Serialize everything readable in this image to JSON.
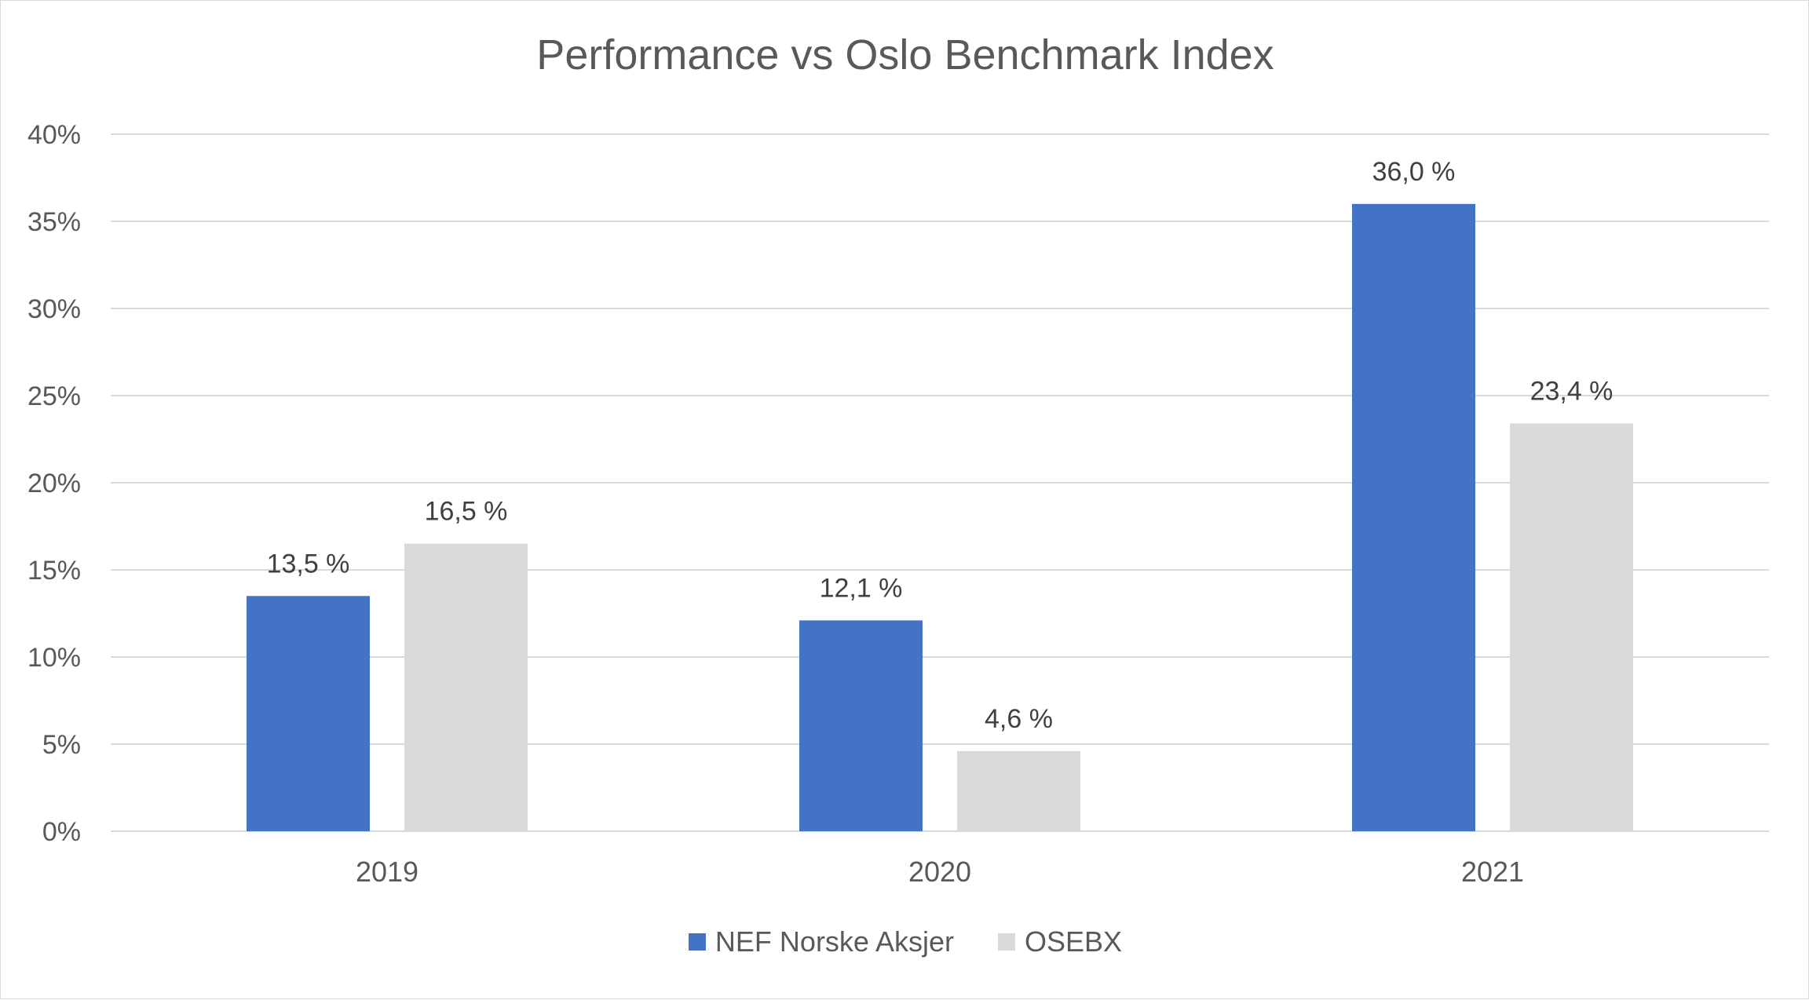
{
  "chart_data": {
    "type": "bar",
    "title": "Performance vs Oslo Benchmark Index",
    "categories": [
      "2019",
      "2020",
      "2021"
    ],
    "series": [
      {
        "name": "NEF Norske Aksjer",
        "color": "#4472c4",
        "values": [
          13.5,
          12.1,
          36.0
        ],
        "labels": [
          "13,5 %",
          "12,1 %",
          "36,0 %"
        ]
      },
      {
        "name": "OSEBX",
        "color": "#d9d9d9",
        "values": [
          16.5,
          4.6,
          23.4
        ],
        "labels": [
          "16,5 %",
          "4,6 %",
          "23,4 %"
        ]
      }
    ],
    "ylim": [
      0,
      40
    ],
    "yticks": [
      0,
      5,
      10,
      15,
      20,
      25,
      30,
      35,
      40
    ],
    "ytick_labels": [
      "0%",
      "5%",
      "10%",
      "15%",
      "20%",
      "25%",
      "30%",
      "35%",
      "40%"
    ],
    "grid": true,
    "legend_position": "bottom"
  }
}
